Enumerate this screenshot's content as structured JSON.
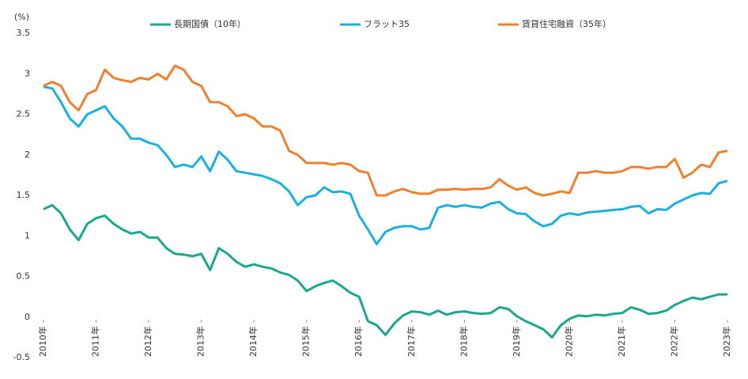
{
  "chart_data": {
    "type": "line",
    "y_unit_label": "(%)",
    "categories": [
      "2010年",
      null,
      null,
      null,
      null,
      null,
      "2011年",
      null,
      null,
      null,
      null,
      null,
      "2012年",
      null,
      null,
      null,
      null,
      null,
      "2013年",
      null,
      null,
      null,
      null,
      null,
      "2014年",
      null,
      null,
      null,
      null,
      null,
      "2015年",
      null,
      null,
      null,
      null,
      null,
      "2016年",
      null,
      null,
      null,
      null,
      null,
      "2017年",
      null,
      null,
      null,
      null,
      null,
      "2018年",
      null,
      null,
      null,
      null,
      null,
      "2019年",
      null,
      null,
      null,
      null,
      null,
      "2020年",
      null,
      null,
      null,
      null,
      null,
      "2021年",
      null,
      null,
      null,
      null,
      null,
      "2022年",
      null,
      null,
      null,
      null,
      null,
      "2023年"
    ],
    "series": [
      {
        "name": "長期国債（10年）",
        "color": "#1aa88c",
        "values": [
          1.33,
          1.38,
          1.28,
          1.08,
          0.95,
          1.15,
          1.22,
          1.25,
          1.15,
          1.08,
          1.03,
          1.05,
          0.98,
          0.98,
          0.85,
          0.78,
          0.77,
          0.75,
          0.78,
          0.58,
          0.85,
          0.78,
          0.68,
          0.62,
          0.65,
          0.62,
          0.6,
          0.55,
          0.52,
          0.45,
          0.32,
          0.38,
          0.42,
          0.45,
          0.38,
          0.3,
          0.25,
          -0.05,
          -0.1,
          -0.22,
          -0.08,
          0.02,
          0.07,
          0.06,
          0.03,
          0.08,
          0.03,
          0.06,
          0.07,
          0.05,
          0.04,
          0.05,
          0.12,
          0.1,
          0.01,
          -0.05,
          -0.1,
          -0.15,
          -0.25,
          -0.1,
          -0.02,
          0.02,
          0.01,
          0.03,
          0.02,
          0.04,
          0.05,
          0.12,
          0.09,
          0.04,
          0.05,
          0.08,
          0.15,
          0.2,
          0.24,
          0.22,
          0.25,
          0.28,
          0.28
        ]
      },
      {
        "name": "フラット35",
        "color": "#1ab0e0",
        "values": [
          2.84,
          2.82,
          2.65,
          2.45,
          2.35,
          2.5,
          2.55,
          2.6,
          2.45,
          2.35,
          2.2,
          2.2,
          2.15,
          2.12,
          2.0,
          1.85,
          1.88,
          1.85,
          1.98,
          1.8,
          2.04,
          1.94,
          1.8,
          1.78,
          1.76,
          1.74,
          1.7,
          1.65,
          1.55,
          1.38,
          1.48,
          1.5,
          1.6,
          1.54,
          1.55,
          1.52,
          1.25,
          1.08,
          0.9,
          1.05,
          1.1,
          1.12,
          1.12,
          1.08,
          1.1,
          1.35,
          1.38,
          1.36,
          1.38,
          1.36,
          1.35,
          1.4,
          1.42,
          1.33,
          1.28,
          1.27,
          1.18,
          1.12,
          1.15,
          1.25,
          1.28,
          1.26,
          1.29,
          1.3,
          1.31,
          1.32,
          1.33,
          1.36,
          1.37,
          1.28,
          1.33,
          1.32,
          1.4,
          1.45,
          1.5,
          1.53,
          1.52,
          1.65,
          1.68
        ]
      },
      {
        "name": "賃貸住宅融資（35年）",
        "color": "#f07f30",
        "values": [
          2.85,
          2.9,
          2.85,
          2.65,
          2.55,
          2.75,
          2.8,
          3.05,
          2.95,
          2.92,
          2.9,
          2.95,
          2.93,
          3.0,
          2.93,
          3.1,
          3.05,
          2.9,
          2.85,
          2.65,
          2.65,
          2.6,
          2.48,
          2.5,
          2.45,
          2.35,
          2.35,
          2.3,
          2.05,
          2.0,
          1.9,
          1.9,
          1.9,
          1.88,
          1.9,
          1.88,
          1.8,
          1.78,
          1.5,
          1.5,
          1.55,
          1.58,
          1.54,
          1.52,
          1.52,
          1.57,
          1.57,
          1.58,
          1.57,
          1.58,
          1.58,
          1.6,
          1.7,
          1.62,
          1.57,
          1.6,
          1.53,
          1.5,
          1.52,
          1.55,
          1.53,
          1.78,
          1.78,
          1.8,
          1.78,
          1.78,
          1.8,
          1.85,
          1.85,
          1.83,
          1.85,
          1.85,
          1.95,
          1.72,
          1.78,
          1.88,
          1.85,
          2.03,
          2.05
        ]
      }
    ],
    "ylim": [
      -0.5,
      3.5
    ],
    "yticks": [
      -0.5,
      0,
      0.5,
      1,
      1.5,
      2,
      2.5,
      3,
      3.5
    ],
    "grid": false,
    "legend": "top"
  }
}
